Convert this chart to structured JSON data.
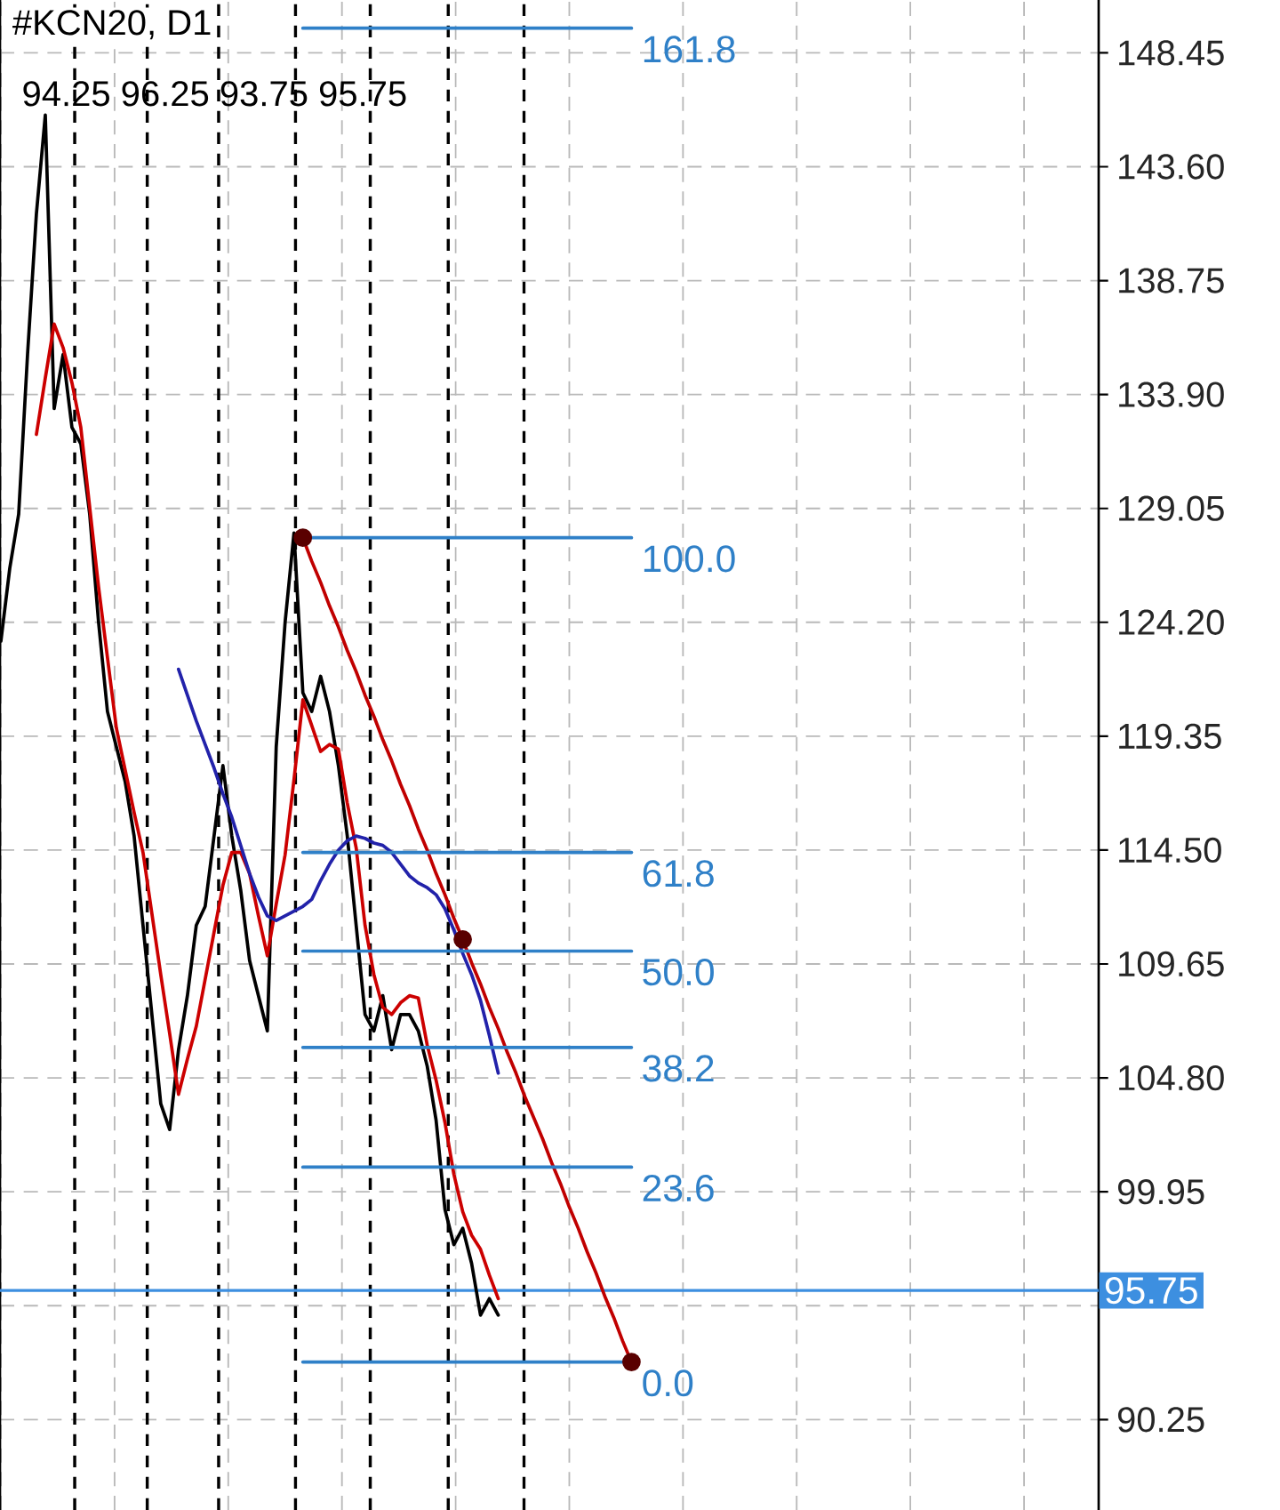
{
  "chart_data": {
    "type": "line",
    "title": "#KCN20, D1",
    "annotations": [
      "94.25 96.25 93.75 95.75"
    ],
    "categories": [
      null,
      null,
      null,
      null,
      null,
      null,
      null,
      null,
      null,
      null,
      null,
      null,
      null,
      null,
      null,
      null,
      null,
      null,
      null,
      null,
      null,
      null,
      null,
      null,
      null,
      null,
      null,
      null,
      null,
      null,
      null,
      null,
      null,
      null,
      null,
      null,
      null,
      null,
      null,
      null,
      null,
      null,
      null,
      null,
      null,
      null,
      null,
      null,
      null,
      null,
      null,
      null,
      null,
      null,
      null,
      null,
      null,
      null,
      null,
      null,
      null,
      null,
      null,
      null,
      null,
      null,
      null,
      null,
      null,
      null,
      null,
      null,
      null,
      null,
      null,
      null,
      null,
      null,
      null,
      null,
      null,
      null,
      null,
      null,
      null,
      null,
      null,
      null,
      null,
      null,
      null,
      null,
      null,
      null,
      null,
      null,
      null,
      null,
      null,
      null,
      null,
      null,
      null,
      null,
      null,
      null,
      null,
      null,
      null,
      null,
      null,
      null,
      null,
      null,
      null,
      null,
      null,
      null,
      null,
      null,
      null,
      null,
      null,
      null
    ],
    "ylim": [
      86.4,
      150.7
    ],
    "yticks": [
      148.45,
      {
        "value": 143.6,
        "label": "143.60"
      },
      138.75,
      {
        "value": 133.9,
        "label": "133.90"
      },
      129.05,
      {
        "value": 124.2,
        "label": "124.20"
      },
      119.35,
      {
        "value": 114.5,
        "label": "114.50"
      },
      109.65,
      {
        "value": 104.8,
        "label": "104.80"
      },
      99.95,
      {
        "value": 95.1,
        "label": null
      },
      90.25
    ],
    "grid": true,
    "series": [
      {
        "color": "#000000",
        "values": [
          123.4,
          126.5,
          128.8,
          135.6,
          141.6,
          145.8,
          133.3,
          135.6,
          132.5,
          131.8,
          128.8,
          124.2,
          120.4,
          118.9,
          117.4,
          115.1,
          111.3,
          107.5,
          103.7,
          102.6,
          106.0,
          108.3,
          111.3,
          112.1,
          115.1,
          118.1,
          115.1,
          112.8,
          109.8,
          108.3,
          106.8,
          118.9,
          124.2,
          128.0,
          121.2,
          120.4,
          121.9,
          120.4,
          118.1,
          115.1,
          111.3,
          107.5,
          106.8,
          108.3,
          106.0,
          107.5,
          107.5,
          106.8,
          105.3,
          103.0,
          99.2,
          97.7,
          98.4,
          96.9,
          94.7,
          95.4,
          94.7,
          null,
          null,
          null,
          null,
          null,
          null,
          null,
          null,
          null,
          null,
          null,
          null,
          null,
          null,
          null,
          null,
          null,
          null,
          null,
          null,
          null,
          null,
          null,
          null,
          null,
          null,
          null,
          null,
          null,
          null,
          null,
          null,
          null,
          null,
          null,
          null,
          null,
          null,
          null,
          null,
          null,
          null,
          null,
          null,
          null,
          null,
          null,
          null,
          null,
          null,
          null,
          null,
          null,
          null,
          null,
          null,
          null,
          null,
          null,
          null,
          null,
          null,
          null,
          null,
          null,
          null,
          null
        ]
      },
      {
        "color": "#cc0000",
        "values": [
          null,
          null,
          null,
          null,
          132.2,
          134.6,
          136.9,
          135.9,
          134.4,
          132.5,
          129.1,
          125.7,
          122.7,
          119.7,
          117.9,
          116.1,
          114.4,
          111.8,
          109.2,
          106.7,
          104.1,
          105.6,
          107.0,
          109.0,
          111.0,
          113.0,
          114.4,
          114.4,
          113.5,
          111.7,
          110.0,
          112.2,
          114.3,
          117.5,
          120.9,
          119.8,
          118.7,
          119.0,
          118.8,
          116.5,
          114.6,
          111.3,
          109.2,
          107.8,
          107.5,
          108.0,
          108.3,
          108.2,
          106.2,
          104.7,
          102.9,
          100.7,
          99.1,
          98.1,
          97.5,
          96.4,
          95.4,
          null,
          null,
          null,
          null,
          null,
          null,
          null,
          null,
          null,
          null,
          null,
          null,
          null,
          null,
          null,
          null,
          null,
          null,
          null,
          null,
          null,
          null,
          null,
          null,
          null,
          null,
          null,
          null,
          null,
          null,
          null,
          null,
          null,
          null,
          null,
          null,
          null,
          null,
          null,
          null,
          null,
          null,
          null,
          null,
          null,
          null,
          null,
          null,
          null,
          null,
          null,
          null,
          null,
          null,
          null,
          null,
          null,
          null,
          null,
          null,
          null,
          null,
          null,
          null,
          null,
          null,
          null
        ]
      },
      {
        "color": "#2222aa",
        "values": [
          null,
          null,
          null,
          null,
          null,
          null,
          null,
          null,
          null,
          null,
          null,
          null,
          null,
          null,
          null,
          null,
          null,
          null,
          null,
          null,
          122.2,
          121.1,
          120.0,
          119.0,
          118.0,
          116.9,
          115.9,
          114.7,
          113.5,
          112.5,
          111.7,
          111.5,
          111.7,
          111.9,
          112.1,
          112.4,
          113.2,
          113.9,
          114.5,
          114.9,
          115.1,
          115.0,
          114.8,
          114.7,
          114.4,
          113.9,
          113.4,
          113.1,
          112.9,
          112.6,
          112.0,
          111.1,
          110.1,
          109.2,
          108.1,
          106.6,
          105.0,
          null,
          null,
          null,
          null,
          null,
          null,
          null,
          null,
          null,
          null,
          null,
          null,
          null,
          null,
          null,
          null,
          null,
          null,
          null,
          null,
          null,
          null,
          null,
          null,
          null,
          null,
          null,
          null,
          null,
          null,
          null,
          null,
          null,
          null,
          null,
          null,
          null,
          null,
          null,
          null,
          null,
          null,
          null,
          null,
          null,
          null,
          null,
          null,
          null,
          null,
          null,
          null,
          null,
          null,
          null,
          null,
          null,
          null,
          null,
          null,
          null,
          null,
          null,
          null,
          null,
          null,
          null
        ]
      },
      {
        "color": "#c00000",
        "values": [
          null,
          null,
          null,
          null,
          null,
          null,
          null,
          null,
          null,
          null,
          null,
          null,
          null,
          null,
          null,
          null,
          null,
          null,
          null,
          null,
          null,
          null,
          null,
          null,
          null,
          null,
          null,
          null,
          null,
          null,
          null,
          null,
          null,
          null,
          127.8,
          126.8,
          125.9,
          124.9,
          124.0,
          123.0,
          122.1,
          121.1,
          120.2,
          119.2,
          118.3,
          117.3,
          116.4,
          115.4,
          114.5,
          113.5,
          112.6,
          111.6,
          110.7,
          109.7,
          108.8,
          107.8,
          106.9,
          105.9,
          105.0,
          104.0,
          103.1,
          102.2,
          101.2,
          100.3,
          99.3,
          98.4,
          97.4,
          96.5,
          95.5,
          94.6,
          93.6,
          92.7,
          null,
          null,
          null,
          null,
          null,
          null,
          null,
          null,
          null,
          null,
          null,
          null,
          null,
          null,
          null,
          null,
          null,
          null,
          null,
          null,
          null,
          null,
          null,
          null,
          null,
          null,
          null,
          null,
          null,
          null,
          null,
          null,
          null,
          null,
          null,
          null,
          null,
          null,
          null,
          null,
          null,
          null,
          null,
          null,
          null,
          null,
          null,
          null,
          null,
          null,
          null,
          null
        ]
      },
      {
        "type": "scatter",
        "marker": "circle",
        "color": "#5a0000",
        "values": [
          null,
          null,
          null,
          null,
          null,
          null,
          null,
          null,
          null,
          null,
          null,
          null,
          null,
          null,
          null,
          null,
          null,
          null,
          null,
          null,
          null,
          null,
          null,
          null,
          null,
          null,
          null,
          null,
          null,
          null,
          null,
          null,
          null,
          null,
          127.8,
          null,
          null,
          null,
          null,
          null,
          null,
          null,
          null,
          null,
          null,
          null,
          null,
          null,
          null,
          null,
          null,
          null,
          110.7,
          null,
          null,
          null,
          null,
          null,
          null,
          null,
          null,
          null,
          null,
          null,
          null,
          null,
          null,
          null,
          null,
          null,
          null,
          92.7,
          null,
          null,
          null,
          null,
          null,
          null,
          null,
          null,
          null,
          null,
          null,
          null,
          null,
          null,
          null,
          null,
          null,
          null,
          null,
          null,
          null,
          null,
          null,
          null,
          null,
          null,
          null,
          null,
          null,
          null,
          null,
          null,
          null,
          null,
          null,
          null,
          null,
          null,
          null,
          null,
          null,
          null,
          null,
          null,
          null,
          null,
          null,
          null,
          null,
          null,
          null,
          null
        ]
      },
      {
        "name": "161.8",
        "color": "#2f80c8",
        "values": [
          null,
          null,
          null,
          null,
          null,
          null,
          null,
          null,
          null,
          null,
          null,
          null,
          null,
          null,
          null,
          null,
          null,
          null,
          null,
          null,
          null,
          null,
          null,
          null,
          null,
          null,
          null,
          null,
          null,
          null,
          null,
          null,
          null,
          null,
          149.5,
          149.5,
          149.5,
          149.5,
          149.5,
          149.5,
          149.5,
          149.5,
          149.5,
          149.5,
          149.5,
          149.5,
          149.5,
          149.5,
          149.5,
          149.5,
          149.5,
          149.5,
          149.5,
          149.5,
          149.5,
          149.5,
          149.5,
          149.5,
          149.5,
          149.5,
          149.5,
          149.5,
          149.5,
          149.5,
          149.5,
          149.5,
          149.5,
          149.5,
          149.5,
          149.5,
          149.5,
          149.5,
          null,
          null,
          null,
          null,
          null,
          null,
          null,
          null,
          null,
          null,
          null,
          null,
          null,
          null,
          null,
          null,
          null,
          null,
          null,
          null,
          null,
          null,
          null,
          null,
          null,
          null,
          null,
          null,
          null,
          null,
          null,
          null,
          null,
          null,
          null,
          null,
          null,
          null,
          null,
          null,
          null,
          null,
          null,
          null,
          null,
          null,
          null,
          null,
          null,
          null,
          null,
          null
        ]
      },
      {
        "name": "100.0",
        "color": "#2f80c8",
        "values": [
          null,
          null,
          null,
          null,
          null,
          null,
          null,
          null,
          null,
          null,
          null,
          null,
          null,
          null,
          null,
          null,
          null,
          null,
          null,
          null,
          null,
          null,
          null,
          null,
          null,
          null,
          null,
          null,
          null,
          null,
          null,
          null,
          null,
          null,
          127.8,
          127.8,
          127.8,
          127.8,
          127.8,
          127.8,
          127.8,
          127.8,
          127.8,
          127.8,
          127.8,
          127.8,
          127.8,
          127.8,
          127.8,
          127.8,
          127.8,
          127.8,
          127.8,
          127.8,
          127.8,
          127.8,
          127.8,
          127.8,
          127.8,
          127.8,
          127.8,
          127.8,
          127.8,
          127.8,
          127.8,
          127.8,
          127.8,
          127.8,
          127.8,
          127.8,
          127.8,
          127.8,
          null,
          null,
          null,
          null,
          null,
          null,
          null,
          null,
          null,
          null,
          null,
          null,
          null,
          null,
          null,
          null,
          null,
          null,
          null,
          null,
          null,
          null,
          null,
          null,
          null,
          null,
          null,
          null,
          null,
          null,
          null,
          null,
          null,
          null,
          null,
          null,
          null,
          null,
          null,
          null,
          null,
          null,
          null,
          null,
          null,
          null,
          null,
          null,
          null,
          null,
          null,
          null
        ]
      },
      {
        "name": "61.8",
        "color": "#2f80c8",
        "values": [
          null,
          null,
          null,
          null,
          null,
          null,
          null,
          null,
          null,
          null,
          null,
          null,
          null,
          null,
          null,
          null,
          null,
          null,
          null,
          null,
          null,
          null,
          null,
          null,
          null,
          null,
          null,
          null,
          null,
          null,
          null,
          null,
          null,
          null,
          114.4,
          114.4,
          114.4,
          114.4,
          114.4,
          114.4,
          114.4,
          114.4,
          114.4,
          114.4,
          114.4,
          114.4,
          114.4,
          114.4,
          114.4,
          114.4,
          114.4,
          114.4,
          114.4,
          114.4,
          114.4,
          114.4,
          114.4,
          114.4,
          114.4,
          114.4,
          114.4,
          114.4,
          114.4,
          114.4,
          114.4,
          114.4,
          114.4,
          114.4,
          114.4,
          114.4,
          114.4,
          114.4,
          null,
          null,
          null,
          null,
          null,
          null,
          null,
          null,
          null,
          null,
          null,
          null,
          null,
          null,
          null,
          null,
          null,
          null,
          null,
          null,
          null,
          null,
          null,
          null,
          null,
          null,
          null,
          null,
          null,
          null,
          null,
          null,
          null,
          null,
          null,
          null,
          null,
          null,
          null,
          null,
          null,
          null,
          null,
          null,
          null,
          null,
          null,
          null,
          null,
          null,
          null,
          null
        ]
      },
      {
        "name": "50.0",
        "color": "#2f80c8",
        "values": [
          null,
          null,
          null,
          null,
          null,
          null,
          null,
          null,
          null,
          null,
          null,
          null,
          null,
          null,
          null,
          null,
          null,
          null,
          null,
          null,
          null,
          null,
          null,
          null,
          null,
          null,
          null,
          null,
          null,
          null,
          null,
          null,
          null,
          null,
          110.2,
          110.2,
          110.2,
          110.2,
          110.2,
          110.2,
          110.2,
          110.2,
          110.2,
          110.2,
          110.2,
          110.2,
          110.2,
          110.2,
          110.2,
          110.2,
          110.2,
          110.2,
          110.2,
          110.2,
          110.2,
          110.2,
          110.2,
          110.2,
          110.2,
          110.2,
          110.2,
          110.2,
          110.2,
          110.2,
          110.2,
          110.2,
          110.2,
          110.2,
          110.2,
          110.2,
          110.2,
          110.2,
          null,
          null,
          null,
          null,
          null,
          null,
          null,
          null,
          null,
          null,
          null,
          null,
          null,
          null,
          null,
          null,
          null,
          null,
          null,
          null,
          null,
          null,
          null,
          null,
          null,
          null,
          null,
          null,
          null,
          null,
          null,
          null,
          null,
          null,
          null,
          null,
          null,
          null,
          null,
          null,
          null,
          null,
          null,
          null,
          null,
          null,
          null,
          null,
          null,
          null,
          null,
          null
        ]
      },
      {
        "name": "38.2",
        "color": "#2f80c8",
        "values": [
          null,
          null,
          null,
          null,
          null,
          null,
          null,
          null,
          null,
          null,
          null,
          null,
          null,
          null,
          null,
          null,
          null,
          null,
          null,
          null,
          null,
          null,
          null,
          null,
          null,
          null,
          null,
          null,
          null,
          null,
          null,
          null,
          null,
          null,
          106.1,
          106.1,
          106.1,
          106.1,
          106.1,
          106.1,
          106.1,
          106.1,
          106.1,
          106.1,
          106.1,
          106.1,
          106.1,
          106.1,
          106.1,
          106.1,
          106.1,
          106.1,
          106.1,
          106.1,
          106.1,
          106.1,
          106.1,
          106.1,
          106.1,
          106.1,
          106.1,
          106.1,
          106.1,
          106.1,
          106.1,
          106.1,
          106.1,
          106.1,
          106.1,
          106.1,
          106.1,
          106.1,
          null,
          null,
          null,
          null,
          null,
          null,
          null,
          null,
          null,
          null,
          null,
          null,
          null,
          null,
          null,
          null,
          null,
          null,
          null,
          null,
          null,
          null,
          null,
          null,
          null,
          null,
          null,
          null,
          null,
          null,
          null,
          null,
          null,
          null,
          null,
          null,
          null,
          null,
          null,
          null,
          null,
          null,
          null,
          null,
          null,
          null,
          null,
          null,
          null,
          null,
          null,
          null
        ]
      },
      {
        "name": "23.6",
        "color": "#2f80c8",
        "values": [
          null,
          null,
          null,
          null,
          null,
          null,
          null,
          null,
          null,
          null,
          null,
          null,
          null,
          null,
          null,
          null,
          null,
          null,
          null,
          null,
          null,
          null,
          null,
          null,
          null,
          null,
          null,
          null,
          null,
          null,
          null,
          null,
          null,
          null,
          101.0,
          101.0,
          101.0,
          101.0,
          101.0,
          101.0,
          101.0,
          101.0,
          101.0,
          101.0,
          101.0,
          101.0,
          101.0,
          101.0,
          101.0,
          101.0,
          101.0,
          101.0,
          101.0,
          101.0,
          101.0,
          101.0,
          101.0,
          101.0,
          101.0,
          101.0,
          101.0,
          101.0,
          101.0,
          101.0,
          101.0,
          101.0,
          101.0,
          101.0,
          101.0,
          101.0,
          101.0,
          101.0,
          null,
          null,
          null,
          null,
          null,
          null,
          null,
          null,
          null,
          null,
          null,
          null,
          null,
          null,
          null,
          null,
          null,
          null,
          null,
          null,
          null,
          null,
          null,
          null,
          null,
          null,
          null,
          null,
          null,
          null,
          null,
          null,
          null,
          null,
          null,
          null,
          null,
          null,
          null,
          null,
          null,
          null,
          null,
          null,
          null,
          null,
          null,
          null,
          null,
          null,
          null,
          null
        ]
      },
      {
        "name": "0.0",
        "color": "#2f80c8",
        "values": [
          null,
          null,
          null,
          null,
          null,
          null,
          null,
          null,
          null,
          null,
          null,
          null,
          null,
          null,
          null,
          null,
          null,
          null,
          null,
          null,
          null,
          null,
          null,
          null,
          null,
          null,
          null,
          null,
          null,
          null,
          null,
          null,
          null,
          null,
          92.7,
          92.7,
          92.7,
          92.7,
          92.7,
          92.7,
          92.7,
          92.7,
          92.7,
          92.7,
          92.7,
          92.7,
          92.7,
          92.7,
          92.7,
          92.7,
          92.7,
          92.7,
          92.7,
          92.7,
          92.7,
          92.7,
          92.7,
          92.7,
          92.7,
          92.7,
          92.7,
          92.7,
          92.7,
          92.7,
          92.7,
          92.7,
          92.7,
          92.7,
          92.7,
          92.7,
          92.7,
          92.7,
          null,
          null,
          null,
          null,
          null,
          null,
          null,
          null,
          null,
          null,
          null,
          null,
          null,
          null,
          null,
          null,
          null,
          null,
          null,
          null,
          null,
          null,
          null,
          null,
          null,
          null,
          null,
          null,
          null,
          null,
          null,
          null,
          null,
          null,
          null,
          null,
          null,
          null,
          null,
          null,
          null,
          null,
          null,
          null,
          null,
          null,
          null,
          null,
          null,
          null,
          null,
          null
        ]
      }
    ],
    "ref_lines": [
      {
        "axis": "y",
        "value": 95.75,
        "label": "95.75",
        "color": "#3d8fe0"
      }
    ]
  }
}
